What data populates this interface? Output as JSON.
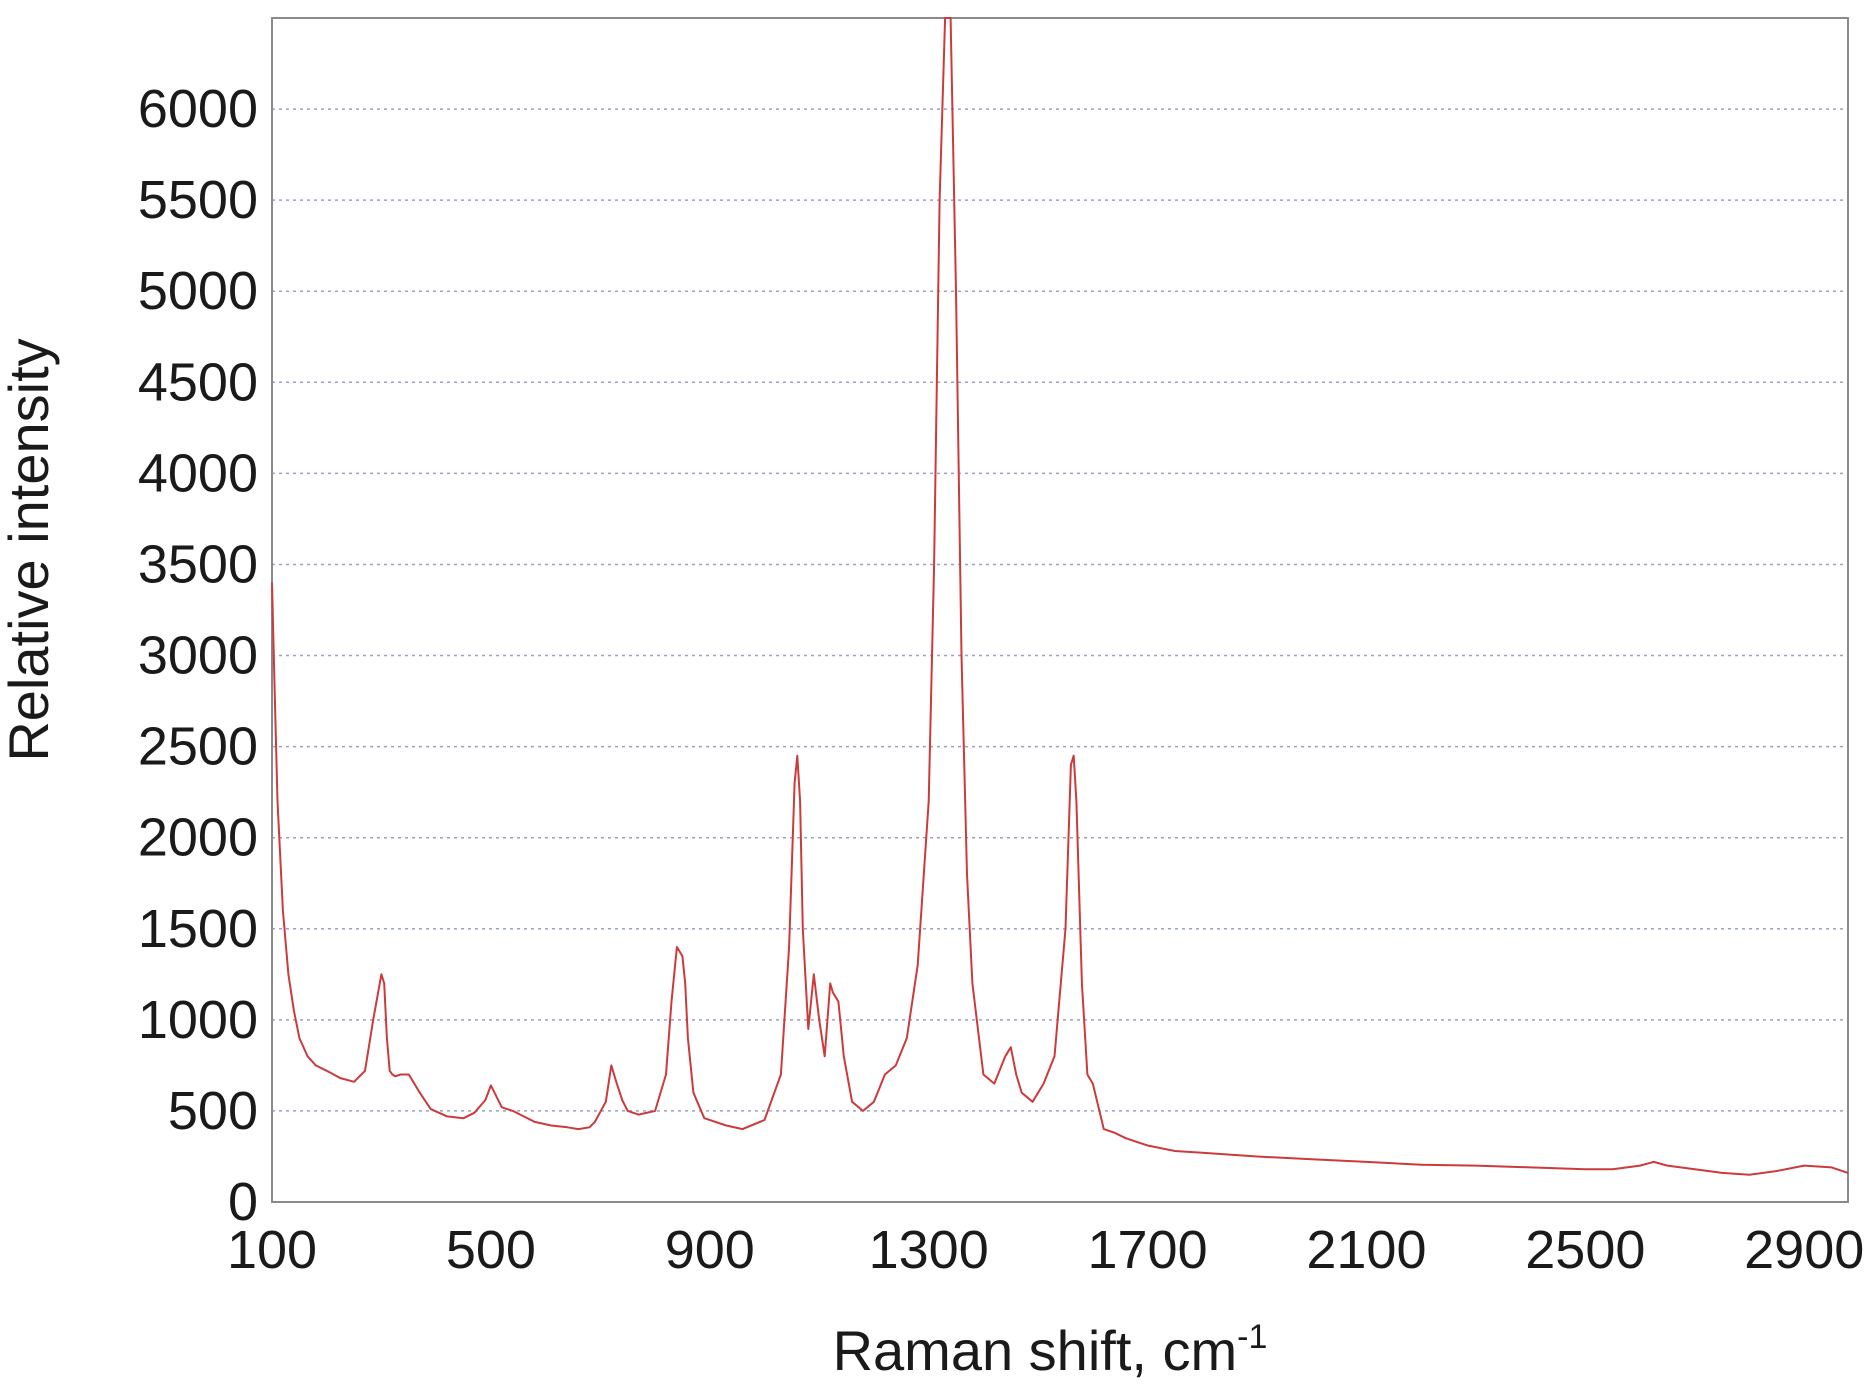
{
  "chart_data": {
    "type": "line",
    "title": "",
    "xlabel": "Raman shift, cm",
    "xlabel_superscript": "-1",
    "ylabel": "Relative intensity",
    "xlim": [
      100,
      2980
    ],
    "ylim": [
      0,
      6500
    ],
    "x_ticks": [
      100,
      500,
      900,
      1300,
      1700,
      2100,
      2500,
      2900
    ],
    "y_ticks": [
      0,
      500,
      1000,
      1500,
      2000,
      2500,
      3000,
      3500,
      4000,
      4500,
      5000,
      5500,
      6000
    ],
    "grid": {
      "horizontal": true,
      "vertical": false,
      "style": "dotted"
    },
    "legend": "none",
    "line_color": "#cc3b3b",
    "series": [
      {
        "x": [
          100,
          105,
          110,
          120,
          130,
          140,
          150,
          165,
          180,
          200,
          225,
          250,
          270,
          285,
          300,
          305,
          310,
          315,
          320,
          325,
          335,
          350,
          370,
          390,
          420,
          450,
          470,
          490,
          500,
          510,
          520,
          540,
          560,
          580,
          610,
          640,
          660,
          680,
          690,
          710,
          720,
          730,
          740,
          750,
          770,
          800,
          820,
          830,
          840,
          850,
          855,
          860,
          870,
          890,
          930,
          960,
          1000,
          1030,
          1045,
          1055,
          1060,
          1065,
          1070,
          1080,
          1090,
          1100,
          1110,
          1120,
          1125,
          1135,
          1145,
          1160,
          1180,
          1200,
          1220,
          1240,
          1260,
          1280,
          1300,
          1310,
          1320,
          1330,
          1340,
          1350,
          1360,
          1370,
          1380,
          1400,
          1420,
          1440,
          1450,
          1460,
          1470,
          1490,
          1510,
          1530,
          1550,
          1560,
          1565,
          1570,
          1580,
          1590,
          1600,
          1620,
          1640,
          1660,
          1700,
          1750,
          1800,
          1900,
          2000,
          2100,
          2200,
          2300,
          2400,
          2500,
          2550,
          2600,
          2625,
          2650,
          2700,
          2750,
          2800,
          2850,
          2900,
          2950,
          2980
        ],
        "y": [
          3400,
          2800,
          2200,
          1600,
          1250,
          1050,
          900,
          800,
          750,
          720,
          680,
          660,
          720,
          1000,
          1250,
          1200,
          900,
          720,
          700,
          690,
          700,
          700,
          600,
          510,
          470,
          460,
          490,
          560,
          640,
          580,
          520,
          500,
          470,
          440,
          420,
          410,
          400,
          410,
          440,
          550,
          750,
          650,
          560,
          500,
          480,
          500,
          700,
          1100,
          1400,
          1350,
          1200,
          900,
          600,
          460,
          420,
          400,
          450,
          700,
          1400,
          2300,
          2450,
          2200,
          1500,
          950,
          1250,
          1000,
          800,
          1200,
          1150,
          1100,
          800,
          550,
          500,
          550,
          700,
          750,
          900,
          1300,
          2200,
          3500,
          5500,
          6500,
          6500,
          5000,
          3000,
          1800,
          1200,
          700,
          650,
          800,
          850,
          700,
          600,
          550,
          650,
          800,
          1500,
          2400,
          2450,
          2200,
          1200,
          700,
          650,
          400,
          380,
          350,
          310,
          280,
          270,
          250,
          235,
          220,
          205,
          200,
          190,
          180,
          180,
          200,
          220,
          200,
          180,
          160,
          150,
          170,
          200,
          190,
          160
        ]
      }
    ]
  }
}
